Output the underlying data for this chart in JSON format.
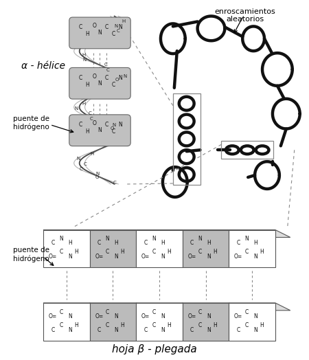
{
  "title": "",
  "bg_color": "#ffffff",
  "label_alpha_helix": "α - hélice",
  "label_puente1": "puente de\nhidrógeno",
  "label_puente2": "puente de\nhidrógeno",
  "label_enroscamientos": "enroscamientos\naleatorios",
  "label_hoja": "hoja β - plegada",
  "helix_color": "#aaaaaa",
  "line_color": "#000000",
  "bond_color": "#888888",
  "sheet_light": "#ffffff",
  "sheet_dark": "#aaaaaa"
}
